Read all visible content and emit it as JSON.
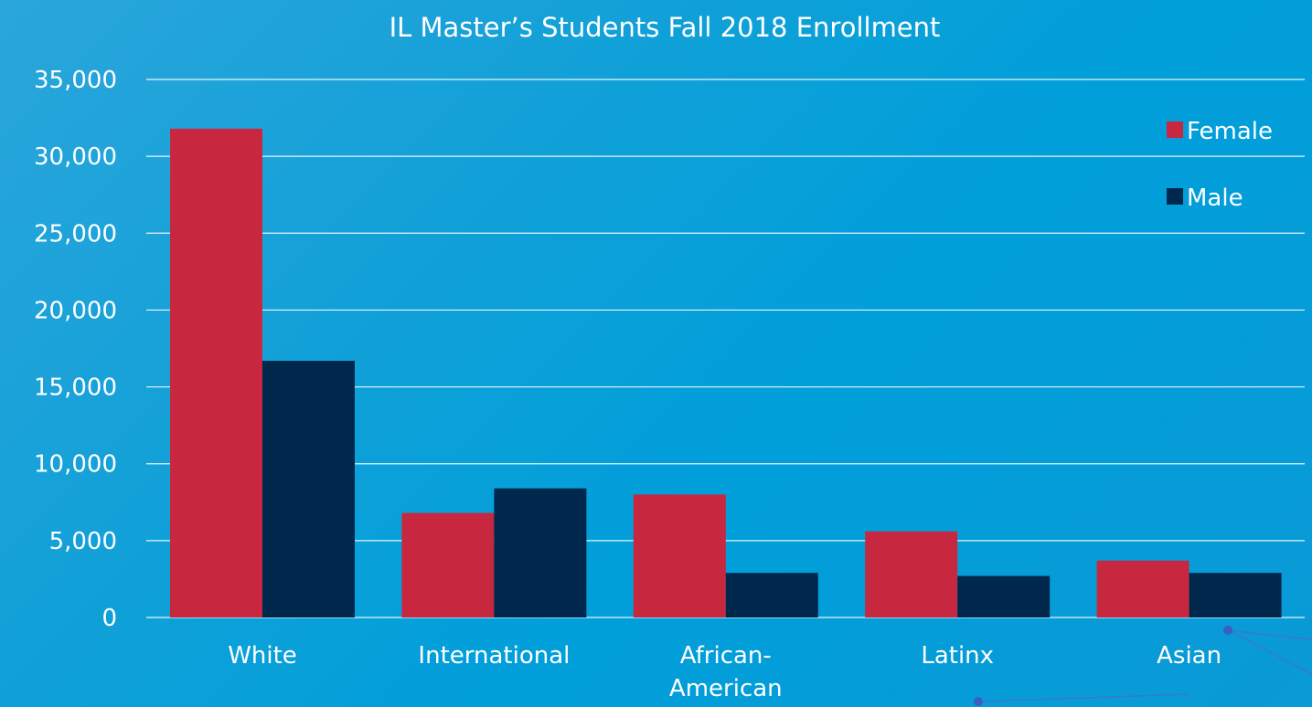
{
  "chart_data": {
    "type": "bar",
    "title": "IL Master’s Students Fall 2018 Enrollment",
    "categories": [
      "White",
      "International",
      "African-American",
      "Latinx",
      "Asian"
    ],
    "category_lines": [
      [
        "White"
      ],
      [
        "International"
      ],
      [
        "African-",
        "American"
      ],
      [
        "Latinx"
      ],
      [
        "Asian"
      ]
    ],
    "series": [
      {
        "name": "Female",
        "color": "#c8283f",
        "values": [
          31800,
          6800,
          8000,
          5600,
          3700
        ]
      },
      {
        "name": "Male",
        "color": "#00284d",
        "values": [
          16700,
          8400,
          2900,
          2700,
          2900
        ]
      }
    ],
    "ylim": [
      0,
      35000
    ],
    "yticks": [
      0,
      5000,
      10000,
      15000,
      20000,
      25000,
      30000,
      35000
    ],
    "ytick_labels": [
      "0",
      "5,000",
      "10,000",
      "15,000",
      "20,000",
      "25,000",
      "30,000",
      "35,000"
    ],
    "grid": true,
    "gridline_color": "#ffffff",
    "legend_position": "top-right",
    "xlabel": "",
    "ylabel": ""
  }
}
